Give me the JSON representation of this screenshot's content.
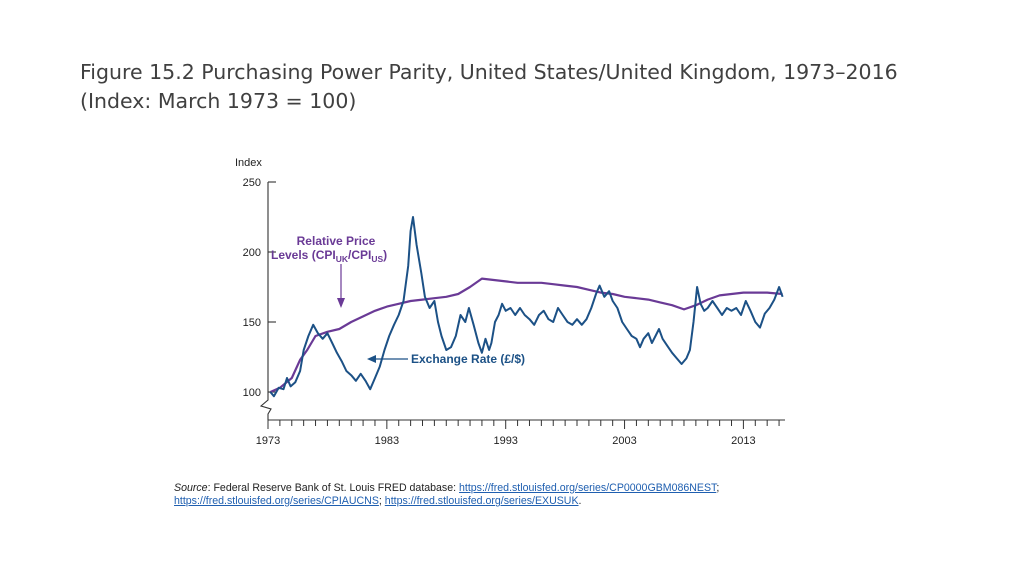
{
  "title": {
    "line1": "Figure 15.2 Purchasing Power Parity, United States/United Kingdom, 1973–2016",
    "line2": "(Index: March 1973 = 100)"
  },
  "source": {
    "label": "Source",
    "text": ": Federal Reserve Bank of St. Louis FRED database: ",
    "link1": "https://fred.stlouisfed.org/series/CP0000GBM086NEST",
    "sep1": "; ",
    "link2": "https://fred.stlouisfed.org/series/CPIAUCNS",
    "sep2": "; ",
    "link3": "https://fred.stlouisfed.org/series/EXUSUK",
    "end": "."
  },
  "colors": {
    "price": "#6a3a96",
    "exchange": "#1c5186",
    "annotation": "#6a3a96",
    "annotation2": "#1c5186"
  },
  "chart_data": {
    "type": "line",
    "ylabel": "Index",
    "ylim": [
      80,
      250
    ],
    "xlim": [
      1973,
      2016.5
    ],
    "yticks": [
      100,
      150,
      200,
      250
    ],
    "xticks": [
      1973,
      1983,
      1993,
      2003,
      2013
    ],
    "grid": false,
    "annotations": {
      "price_line1": "Relative Price",
      "price_line2_a": "Levels (CPI",
      "price_sub1": "UK",
      "price_mid": "/CPI",
      "price_sub2": "US",
      "price_end": ")",
      "exchange": "Exchange Rate (£/$)"
    },
    "series": [
      {
        "name": "Relative Price Levels (CPIUK/CPIUS)",
        "points": [
          [
            1973.2,
            100
          ],
          [
            1974,
            103
          ],
          [
            1975,
            110
          ],
          [
            1975.7,
            123
          ],
          [
            1976.3,
            130
          ],
          [
            1977,
            140
          ],
          [
            1978,
            143
          ],
          [
            1979,
            145
          ],
          [
            1980,
            150
          ],
          [
            1981,
            154
          ],
          [
            1982,
            158
          ],
          [
            1983,
            161
          ],
          [
            1984,
            163
          ],
          [
            1985,
            165
          ],
          [
            1986,
            166
          ],
          [
            1987,
            167
          ],
          [
            1988,
            168
          ],
          [
            1989,
            170
          ],
          [
            1990,
            175
          ],
          [
            1991,
            181
          ],
          [
            1992,
            180
          ],
          [
            1993,
            179
          ],
          [
            1994,
            178
          ],
          [
            1995,
            178
          ],
          [
            1996,
            178
          ],
          [
            1997,
            177
          ],
          [
            1998,
            176
          ],
          [
            1999,
            175
          ],
          [
            2000,
            173
          ],
          [
            2001,
            171
          ],
          [
            2002,
            170
          ],
          [
            2003,
            168
          ],
          [
            2004,
            167
          ],
          [
            2005,
            166
          ],
          [
            2006,
            164
          ],
          [
            2007,
            162
          ],
          [
            2008,
            159
          ],
          [
            2009,
            162
          ],
          [
            2010,
            166
          ],
          [
            2011,
            169
          ],
          [
            2012,
            170
          ],
          [
            2013,
            171
          ],
          [
            2014,
            171
          ],
          [
            2015,
            171
          ],
          [
            2016.3,
            170
          ]
        ]
      },
      {
        "name": "Exchange Rate (£/$)",
        "points": [
          [
            1973.2,
            100
          ],
          [
            1973.5,
            97
          ],
          [
            1973.9,
            103
          ],
          [
            1974.3,
            102
          ],
          [
            1974.6,
            110
          ],
          [
            1974.9,
            104
          ],
          [
            1975.3,
            107
          ],
          [
            1975.7,
            115
          ],
          [
            1976,
            130
          ],
          [
            1976.4,
            140
          ],
          [
            1976.8,
            148
          ],
          [
            1977.2,
            142
          ],
          [
            1977.6,
            138
          ],
          [
            1978,
            142
          ],
          [
            1978.4,
            135
          ],
          [
            1978.8,
            128
          ],
          [
            1979.2,
            122
          ],
          [
            1979.6,
            115
          ],
          [
            1980,
            112
          ],
          [
            1980.4,
            108
          ],
          [
            1980.8,
            113
          ],
          [
            1981.2,
            108
          ],
          [
            1981.6,
            102
          ],
          [
            1982,
            110
          ],
          [
            1982.4,
            118
          ],
          [
            1982.8,
            130
          ],
          [
            1983.2,
            140
          ],
          [
            1983.6,
            148
          ],
          [
            1984,
            155
          ],
          [
            1984.4,
            165
          ],
          [
            1984.8,
            190
          ],
          [
            1985,
            215
          ],
          [
            1985.2,
            225
          ],
          [
            1985.5,
            205
          ],
          [
            1985.9,
            185
          ],
          [
            1986.2,
            168
          ],
          [
            1986.6,
            160
          ],
          [
            1987,
            165
          ],
          [
            1987.3,
            150
          ],
          [
            1987.6,
            140
          ],
          [
            1988,
            130
          ],
          [
            1988.4,
            132
          ],
          [
            1988.8,
            140
          ],
          [
            1989.2,
            155
          ],
          [
            1989.6,
            150
          ],
          [
            1989.9,
            160
          ],
          [
            1990.3,
            148
          ],
          [
            1990.7,
            135
          ],
          [
            1991,
            128
          ],
          [
            1991.3,
            138
          ],
          [
            1991.6,
            130
          ],
          [
            1991.8,
            135
          ],
          [
            1992.1,
            150
          ],
          [
            1992.4,
            155
          ],
          [
            1992.7,
            163
          ],
          [
            1993,
            158
          ],
          [
            1993.4,
            160
          ],
          [
            1993.8,
            155
          ],
          [
            1994.2,
            160
          ],
          [
            1994.6,
            155
          ],
          [
            1995,
            152
          ],
          [
            1995.4,
            148
          ],
          [
            1995.8,
            155
          ],
          [
            1996.2,
            158
          ],
          [
            1996.6,
            152
          ],
          [
            1997,
            150
          ],
          [
            1997.4,
            160
          ],
          [
            1997.8,
            155
          ],
          [
            1998.2,
            150
          ],
          [
            1998.6,
            148
          ],
          [
            1999,
            152
          ],
          [
            1999.4,
            148
          ],
          [
            1999.8,
            152
          ],
          [
            2000.2,
            160
          ],
          [
            2000.6,
            170
          ],
          [
            2000.9,
            176
          ],
          [
            2001.3,
            168
          ],
          [
            2001.7,
            172
          ],
          [
            2002,
            165
          ],
          [
            2002.4,
            160
          ],
          [
            2002.8,
            150
          ],
          [
            2003.2,
            145
          ],
          [
            2003.6,
            140
          ],
          [
            2004,
            138
          ],
          [
            2004.3,
            132
          ],
          [
            2004.6,
            138
          ],
          [
            2005,
            142
          ],
          [
            2005.3,
            135
          ],
          [
            2005.6,
            140
          ],
          [
            2005.9,
            145
          ],
          [
            2006.2,
            138
          ],
          [
            2006.6,
            133
          ],
          [
            2007,
            128
          ],
          [
            2007.4,
            124
          ],
          [
            2007.8,
            120
          ],
          [
            2008.2,
            124
          ],
          [
            2008.5,
            130
          ],
          [
            2008.8,
            150
          ],
          [
            2009.1,
            175
          ],
          [
            2009.4,
            163
          ],
          [
            2009.7,
            158
          ],
          [
            2010,
            160
          ],
          [
            2010.4,
            165
          ],
          [
            2010.8,
            160
          ],
          [
            2011.2,
            155
          ],
          [
            2011.6,
            160
          ],
          [
            2012,
            158
          ],
          [
            2012.4,
            160
          ],
          [
            2012.8,
            155
          ],
          [
            2013.2,
            165
          ],
          [
            2013.6,
            158
          ],
          [
            2014,
            150
          ],
          [
            2014.4,
            146
          ],
          [
            2014.8,
            156
          ],
          [
            2015.2,
            160
          ],
          [
            2015.6,
            166
          ],
          [
            2016,
            175
          ],
          [
            2016.3,
            168
          ]
        ]
      }
    ]
  }
}
